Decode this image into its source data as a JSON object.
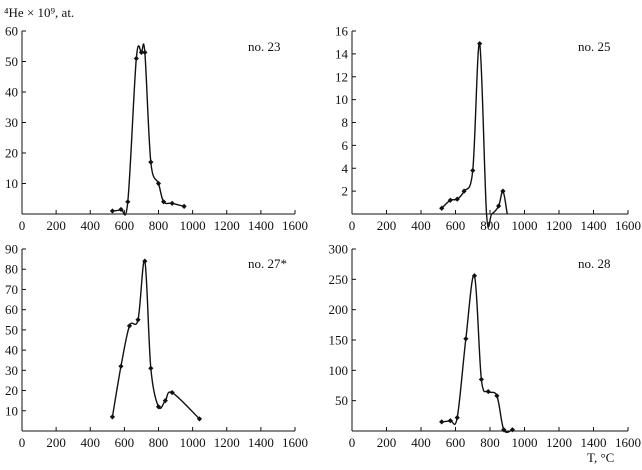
{
  "ylabel": "⁴He × 10⁹, at.",
  "xlabel": "T, °C",
  "chart_data": [
    {
      "type": "line",
      "label": "no. 23",
      "xlim": [
        0,
        1600
      ],
      "ylim": [
        0,
        60
      ],
      "x_ticks": [
        0,
        200,
        400,
        600,
        800,
        1000,
        1200,
        1400,
        1600
      ],
      "y_ticks": [
        10,
        20,
        30,
        40,
        50,
        60
      ],
      "x": [
        530,
        580,
        620,
        670,
        700,
        720,
        755,
        800,
        830,
        880,
        950
      ],
      "y": [
        1.0,
        1.5,
        4.0,
        51.0,
        53.0,
        53.0,
        17.0,
        10.0,
        4.0,
        3.5,
        2.5
      ]
    },
    {
      "type": "line",
      "label": "no. 25",
      "xlim": [
        0,
        1600
      ],
      "ylim": [
        0,
        16
      ],
      "x_ticks": [
        0,
        200,
        400,
        600,
        800,
        1000,
        1200,
        1400,
        1600
      ],
      "y_ticks": [
        2,
        4,
        6,
        8,
        10,
        12,
        14,
        16
      ],
      "x": [
        520,
        570,
        610,
        650,
        700,
        740,
        780,
        810,
        850,
        875,
        900
      ],
      "y": [
        0.5,
        1.2,
        1.3,
        2.0,
        3.8,
        14.9,
        0.0,
        0.0,
        0.7,
        2.0,
        0.0
      ]
    },
    {
      "type": "line",
      "label": "no. 27*",
      "xlim": [
        0,
        1600
      ],
      "ylim": [
        0,
        90
      ],
      "x_ticks": [
        0,
        200,
        400,
        600,
        800,
        1000,
        1200,
        1400,
        1600
      ],
      "y_ticks": [
        10,
        20,
        30,
        40,
        50,
        60,
        70,
        80,
        90
      ],
      "x": [
        530,
        580,
        630,
        680,
        720,
        755,
        800,
        840,
        880,
        1040
      ],
      "y": [
        7.0,
        32.0,
        52.0,
        55.0,
        84.0,
        31.0,
        12.0,
        15.0,
        19.0,
        6.0
      ]
    },
    {
      "type": "line",
      "label": "no. 28",
      "xlim": [
        0,
        1600
      ],
      "ylim": [
        0,
        300
      ],
      "x_ticks": [
        0,
        200,
        400,
        600,
        800,
        1000,
        1200,
        1400,
        1600
      ],
      "y_ticks": [
        50,
        100,
        150,
        200,
        250,
        300
      ],
      "x": [
        520,
        570,
        610,
        660,
        710,
        750,
        790,
        840,
        880,
        930
      ],
      "y": [
        15.0,
        17.0,
        22.0,
        152.0,
        256.0,
        85.0,
        65.0,
        58.0,
        2.0,
        2.0
      ]
    }
  ]
}
